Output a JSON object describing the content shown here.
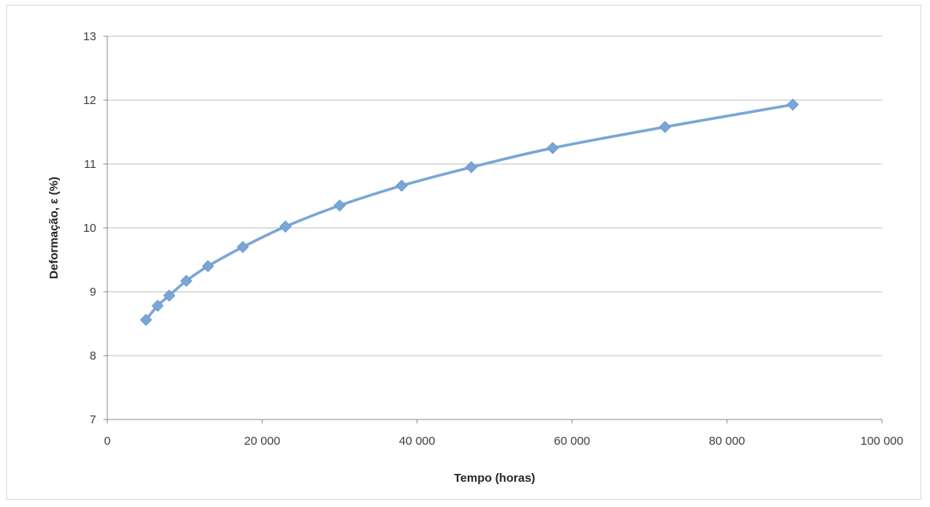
{
  "chart_data": {
    "type": "line",
    "xlabel": "Tempo (horas)",
    "ylabel": "Deformação, ε (%)",
    "xlim": [
      0,
      100000
    ],
    "ylim": [
      7,
      13
    ],
    "x_ticks": [
      0,
      20000,
      40000,
      60000,
      80000,
      100000
    ],
    "x_tick_labels": [
      "0",
      "20 000",
      "40 000",
      "60 000",
      "80 000",
      "100 000"
    ],
    "y_ticks": [
      7,
      8,
      9,
      10,
      11,
      12,
      13
    ],
    "y_tick_labels": [
      "7",
      "8",
      "9",
      "10",
      "11",
      "12",
      "13"
    ],
    "grid": "horizontal",
    "legend": "none",
    "marker": "diamond",
    "series_color": "#7aa6d6",
    "grid_color": "#bfbfbf",
    "series": [
      {
        "x": [
          5000,
          6500,
          8000,
          10200,
          13000,
          17500,
          23000,
          30000,
          38000,
          47000,
          57500,
          72000,
          88500
        ],
        "y": [
          8.56,
          8.78,
          8.94,
          9.17,
          9.4,
          9.7,
          10.02,
          10.35,
          10.66,
          10.95,
          11.25,
          11.58,
          11.93
        ]
      }
    ]
  }
}
